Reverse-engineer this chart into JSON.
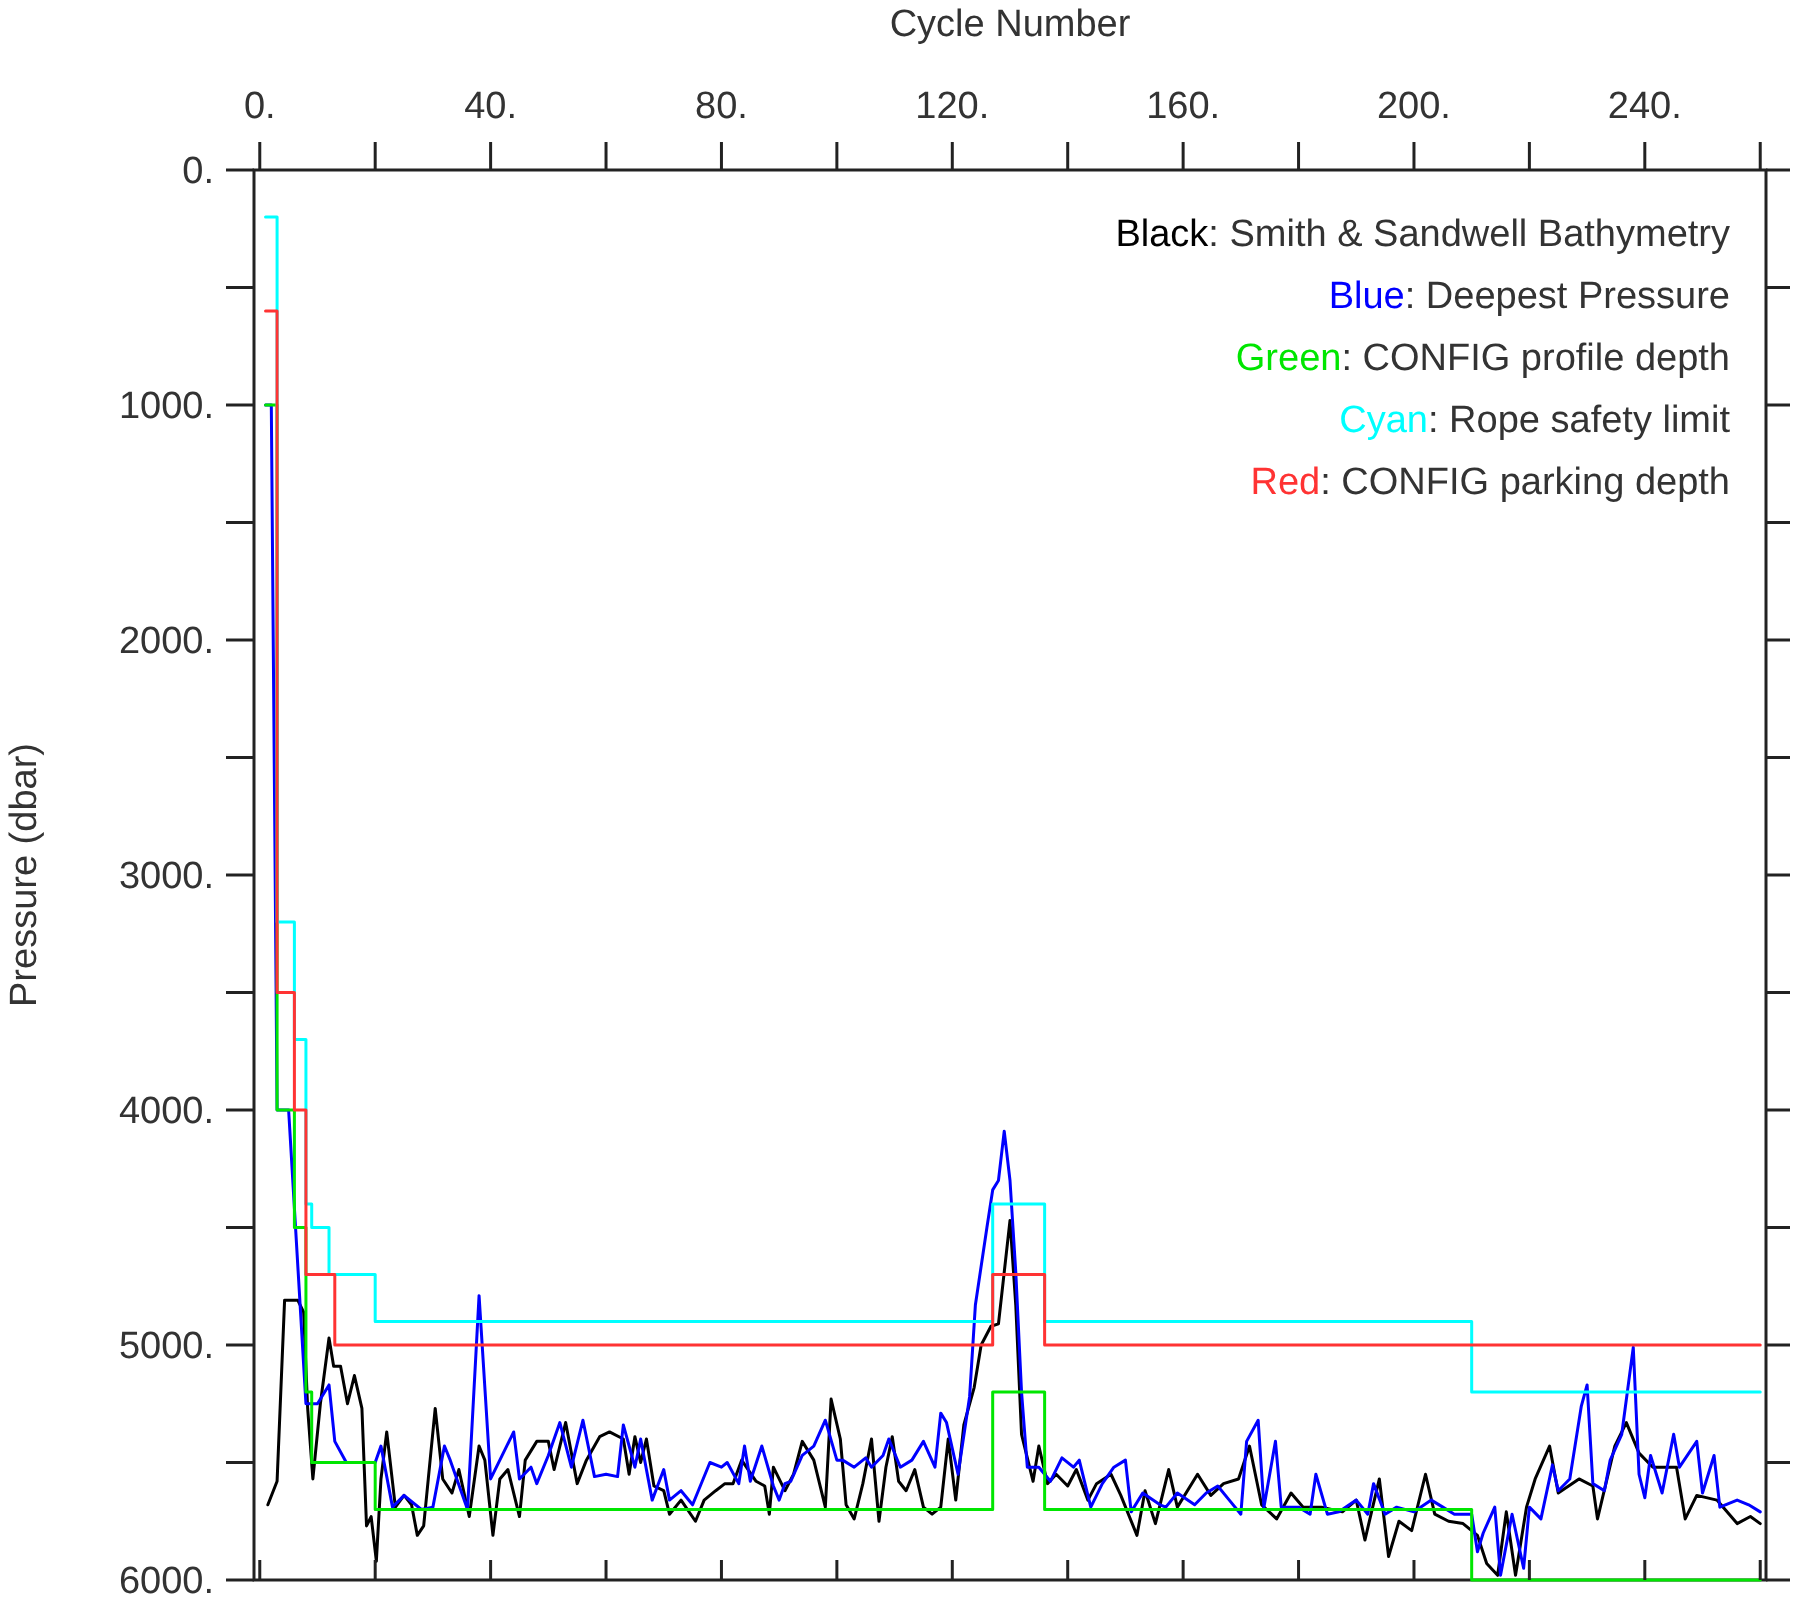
{
  "chart_data": {
    "type": "line",
    "xlabel": "Cycle Number",
    "ylabel": "Pressure (dbar)",
    "xlim": [
      -1,
      261
    ],
    "ylim": [
      6000,
      0
    ],
    "xticks": [
      {
        "value": 0,
        "label": "0."
      },
      {
        "value": 20,
        "label": null
      },
      {
        "value": 40,
        "label": "40."
      },
      {
        "value": 60,
        "label": null
      },
      {
        "value": 80,
        "label": "80."
      },
      {
        "value": 100,
        "label": null
      },
      {
        "value": 120,
        "label": "120."
      },
      {
        "value": 140,
        "label": null
      },
      {
        "value": 160,
        "label": "160."
      },
      {
        "value": 180,
        "label": null
      },
      {
        "value": 200,
        "label": "200."
      },
      {
        "value": 220,
        "label": null
      },
      {
        "value": 240,
        "label": "240."
      },
      {
        "value": 260,
        "label": null
      }
    ],
    "yticks": [
      {
        "value": 0,
        "label": "0."
      },
      {
        "value": 500,
        "label": null
      },
      {
        "value": 1000,
        "label": "1000."
      },
      {
        "value": 1500,
        "label": null
      },
      {
        "value": 2000,
        "label": "2000."
      },
      {
        "value": 2500,
        "label": null
      },
      {
        "value": 3000,
        "label": "3000."
      },
      {
        "value": 3500,
        "label": null
      },
      {
        "value": 4000,
        "label": "4000."
      },
      {
        "value": 4500,
        "label": null
      },
      {
        "value": 5000,
        "label": "5000."
      },
      {
        "value": 5500,
        "label": null
      },
      {
        "value": 6000,
        "label": "6000."
      }
    ],
    "legend": "top right",
    "series": [
      {
        "name": "Black: Smith & Sandwell Bathymetry",
        "color": "#000000",
        "x": [
          1.4,
          3,
          4.3,
          6.6,
          7.6,
          8.3,
          9.2,
          10.5,
          12,
          12.8,
          14,
          15.2,
          16.4,
          17.7,
          18.5,
          19.3,
          20.2,
          21,
          22,
          23.5,
          25,
          26.3,
          27.3,
          28.4,
          29.2,
          30.4,
          31.7,
          33.3,
          34.5,
          36.3,
          38,
          39,
          40.4,
          41.6,
          43,
          45,
          46,
          48,
          50,
          51,
          53,
          55,
          56.6,
          58.9,
          60.6,
          63,
          64,
          65,
          66,
          67,
          68.3,
          70,
          71,
          73,
          75.5,
          77,
          79,
          80.6,
          82,
          83.5,
          86,
          87.5,
          88.3,
          89,
          91,
          92.5,
          94,
          96,
          98,
          99,
          100.6,
          101.6,
          103,
          104.5,
          106,
          107.3,
          108.5,
          109.6,
          110.7,
          112,
          113.5,
          115,
          116.5,
          118,
          119.3,
          120.6,
          122,
          123.8,
          125,
          126.7,
          128,
          130,
          131,
          132,
          134,
          135,
          136.5,
          138,
          140,
          141.5,
          143.5,
          145,
          147.5,
          149.2,
          152,
          153.4,
          155.2,
          157.5,
          159,
          162.5,
          164.8,
          167,
          169.6,
          171.5,
          173.6,
          176.2,
          178.7,
          180.8,
          184,
          187.6,
          190,
          191.5,
          194,
          195.6,
          197.4,
          199.6,
          202,
          203.6,
          206,
          208.5,
          211,
          212.6,
          214.5,
          216,
          217.6,
          219.5,
          221,
          223.5,
          225,
          228.6,
          231,
          231.8,
          234.8,
          236.8,
          239,
          241.4,
          243.7,
          245.5,
          247,
          249,
          252.5,
          256,
          258.3,
          260
        ],
        "values": [
          5680,
          5580,
          4810,
          4810,
          4860,
          5270,
          5570,
          5250,
          4970,
          5090,
          5090,
          5250,
          5130,
          5270,
          5770,
          5730,
          5920,
          5570,
          5370,
          5690,
          5640,
          5680,
          5810,
          5770,
          5570,
          5270,
          5570,
          5630,
          5530,
          5730,
          5430,
          5490,
          5810,
          5570,
          5530,
          5730,
          5490,
          5410,
          5410,
          5530,
          5330,
          5590,
          5490,
          5390,
          5370,
          5400,
          5550,
          5390,
          5500,
          5400,
          5600,
          5620,
          5720,
          5660,
          5750,
          5660,
          5620,
          5590,
          5590,
          5490,
          5580,
          5600,
          5720,
          5520,
          5620,
          5550,
          5410,
          5490,
          5690,
          5230,
          5400,
          5680,
          5740,
          5590,
          5400,
          5750,
          5520,
          5390,
          5580,
          5620,
          5530,
          5690,
          5720,
          5690,
          5400,
          5660,
          5340,
          5180,
          5000,
          4920,
          4910,
          4470,
          4830,
          5380,
          5580,
          5430,
          5590,
          5550,
          5600,
          5530,
          5660,
          5590,
          5550,
          5640,
          5810,
          5620,
          5760,
          5530,
          5690,
          5550,
          5640,
          5590,
          5570,
          5430,
          5680,
          5740,
          5630,
          5690,
          5690,
          5710,
          5660,
          5830,
          5570,
          5900,
          5750,
          5790,
          5550,
          5720,
          5750,
          5760,
          5810,
          5930,
          5980,
          5710,
          5980,
          5690,
          5570,
          5430,
          5630,
          5570,
          5600,
          5740,
          5430,
          5330,
          5460,
          5520,
          5520,
          5520,
          5740,
          5640,
          5660,
          5760,
          5730,
          5760
        ]
      },
      {
        "name": "Blue: Deepest Pressure",
        "color": "#0000ff",
        "x": [
          1,
          2,
          3,
          5,
          8,
          10,
          12,
          13,
          15,
          18,
          20,
          21,
          23,
          25,
          28,
          30,
          32,
          33,
          36,
          38,
          40,
          42,
          44,
          45,
          47,
          48,
          50,
          52,
          54,
          56,
          58,
          60,
          62,
          63,
          65,
          66,
          68,
          70,
          71,
          73,
          75,
          78,
          80,
          81,
          83,
          84,
          85,
          87,
          89,
          90,
          91,
          92,
          94,
          96,
          98,
          100,
          101,
          103,
          105,
          106,
          108,
          109,
          111,
          113,
          115,
          117,
          118,
          119,
          121,
          123,
          124,
          126,
          127,
          128,
          129,
          130,
          131,
          132,
          133,
          135,
          137,
          139,
          141,
          142,
          144,
          146,
          148,
          150,
          151,
          153,
          156,
          157,
          159,
          162,
          164,
          166,
          168,
          170,
          171,
          173,
          174,
          176,
          177,
          180,
          182,
          183,
          185,
          187,
          190,
          192,
          193,
          195,
          197,
          200,
          203,
          205,
          207,
          210,
          211,
          212,
          214,
          215,
          217,
          219,
          220,
          222,
          224,
          225,
          227,
          229,
          230,
          231,
          233,
          234,
          236,
          238,
          239,
          240,
          241,
          243,
          245,
          246,
          249,
          250,
          252,
          253,
          256,
          258,
          260
        ],
        "values": [
          1000,
          1000,
          4000,
          4000,
          5250,
          5250,
          5170,
          5410,
          5500,
          5500,
          5500,
          5430,
          5690,
          5640,
          5700,
          5690,
          5430,
          5490,
          5700,
          4790,
          5570,
          5470,
          5370,
          5570,
          5520,
          5590,
          5470,
          5330,
          5520,
          5320,
          5560,
          5550,
          5560,
          5340,
          5520,
          5400,
          5660,
          5530,
          5660,
          5620,
          5680,
          5500,
          5520,
          5500,
          5590,
          5430,
          5580,
          5430,
          5600,
          5660,
          5590,
          5580,
          5470,
          5430,
          5320,
          5490,
          5490,
          5520,
          5480,
          5520,
          5470,
          5400,
          5520,
          5490,
          5410,
          5520,
          5290,
          5330,
          5550,
          5220,
          4830,
          4500,
          4340,
          4300,
          4090,
          4300,
          4690,
          5200,
          5520,
          5520,
          5580,
          5480,
          5520,
          5490,
          5690,
          5590,
          5520,
          5490,
          5710,
          5630,
          5680,
          5690,
          5630,
          5680,
          5630,
          5600,
          5660,
          5720,
          5410,
          5320,
          5690,
          5410,
          5690,
          5690,
          5720,
          5550,
          5720,
          5710,
          5660,
          5720,
          5590,
          5720,
          5690,
          5710,
          5660,
          5690,
          5720,
          5720,
          5880,
          5800,
          5690,
          5980,
          5720,
          5950,
          5690,
          5740,
          5510,
          5620,
          5570,
          5260,
          5170,
          5590,
          5620,
          5490,
          5380,
          5010,
          5550,
          5650,
          5470,
          5630,
          5380,
          5520,
          5410,
          5630,
          5470,
          5690,
          5660,
          5680,
          5710
        ]
      },
      {
        "name": "Green: CONFIG profile depth",
        "color": "#00e600",
        "type": "step",
        "x": [
          1,
          3,
          6,
          8,
          9,
          10,
          20,
          127,
          136,
          210,
          260
        ],
        "values": [
          1000,
          4000,
          4500,
          5200,
          5500,
          5500,
          5700,
          5200,
          5700,
          6000,
          6000
        ]
      },
      {
        "name": "Cyan: Rope safety limit",
        "color": "#00ffff",
        "type": "step",
        "x": [
          1,
          3,
          6,
          8,
          9,
          12,
          20,
          127,
          136,
          210,
          260
        ],
        "values": [
          200,
          3200,
          3700,
          4400,
          4500,
          4700,
          4900,
          4400,
          4900,
          5200,
          5200
        ]
      },
      {
        "name": "Red: CONFIG parking depth",
        "color": "#ff3333",
        "type": "step",
        "x": [
          1,
          3,
          6,
          8,
          13,
          127,
          136,
          260
        ],
        "values": [
          600,
          3500,
          4000,
          4700,
          5000,
          4700,
          5000,
          5000
        ]
      }
    ]
  }
}
